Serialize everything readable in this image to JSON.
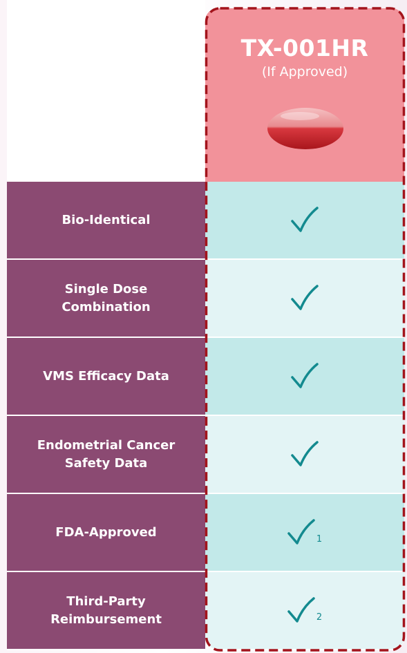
{
  "header": {
    "title": "TX-001HR",
    "subtitle": "(If Approved)"
  },
  "rows": [
    {
      "label": "Bio-Identical"
    },
    {
      "label": "Single Dose Combination"
    },
    {
      "label": "VMS Efficacy Data"
    },
    {
      "label": "Endometrial Cancer Safety Data"
    },
    {
      "label": "FDA-Approved",
      "footnote": "1"
    },
    {
      "label": "Third-Party Reimbursement",
      "footnote": "2"
    }
  ]
}
